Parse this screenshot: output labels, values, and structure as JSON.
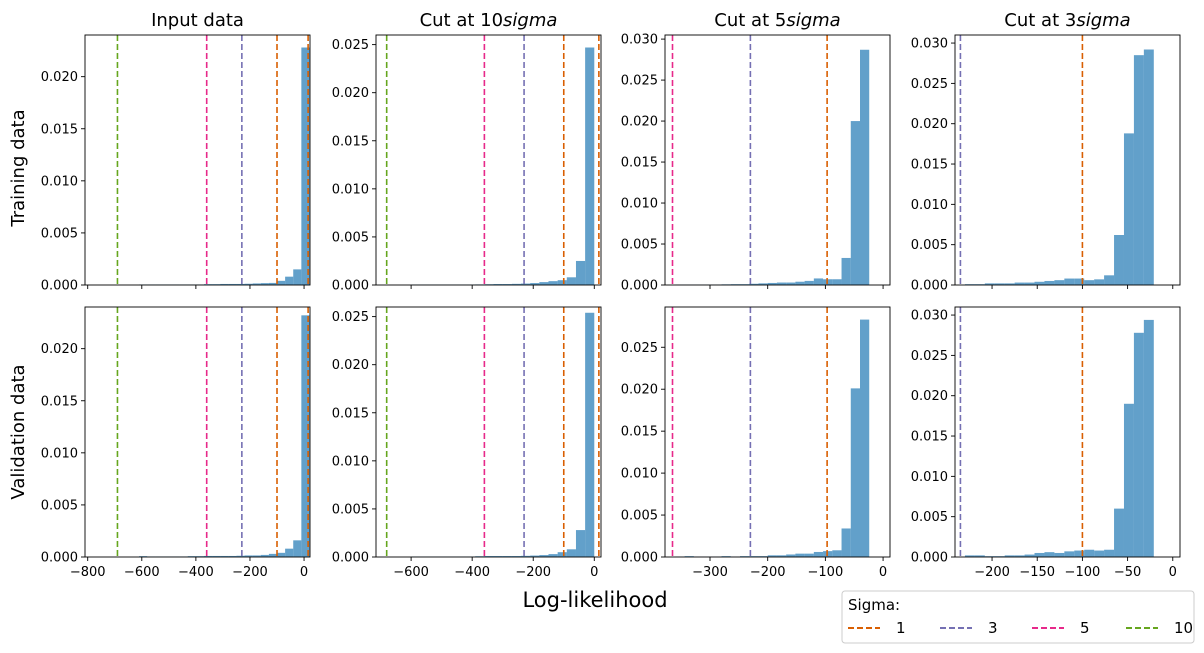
{
  "figure": {
    "xlabel": "Log-likelihood",
    "row_labels": [
      "Training data",
      "Validation data"
    ]
  },
  "legend": {
    "title": "Sigma:",
    "placement": "bottom-right",
    "entries": [
      {
        "label": "1",
        "color": "#d95f02"
      },
      {
        "label": "3",
        "color": "#7570b3"
      },
      {
        "label": "5",
        "color": "#e7298a"
      },
      {
        "label": "10",
        "color": "#66a61e"
      }
    ]
  },
  "chart_data": [
    {
      "type": "bar",
      "row": 0,
      "col": 0,
      "title": "Input data",
      "xlim": [
        -810,
        22
      ],
      "ylim": [
        0,
        0.024
      ],
      "xticks": [
        -800,
        -600,
        -400,
        -200,
        0
      ],
      "yticks": [
        0,
        0.005,
        0.01,
        0.015,
        0.02
      ],
      "ytick_labels": [
        "0.000",
        "0.005",
        "0.010",
        "0.015",
        "0.020"
      ],
      "show_xtick_labels": false,
      "vlines": [
        {
          "sigma": "1",
          "x": -100
        },
        {
          "sigma": "1",
          "x": 15
        },
        {
          "sigma": "3",
          "x": -230
        },
        {
          "sigma": "5",
          "x": -360
        },
        {
          "sigma": "10",
          "x": -690
        }
      ],
      "bins": {
        "start": -610,
        "width": 30,
        "values": [
          5e-05,
          5e-05,
          5e-05,
          5e-05,
          5e-05,
          5e-05,
          5e-05,
          5e-05,
          8e-05,
          8e-05,
          0.0001,
          0.0001,
          0.0001,
          0.00012,
          0.00015,
          0.00018,
          0.0002,
          0.0004,
          0.0008,
          0.0015,
          0.0228
        ]
      }
    },
    {
      "type": "bar",
      "row": 0,
      "col": 1,
      "title": "Cut at 10",
      "title_italic": "sigma",
      "xlim": [
        -715,
        22
      ],
      "ylim": [
        0,
        0.026
      ],
      "xticks": [
        -600,
        -400,
        -200,
        0
      ],
      "yticks": [
        0,
        0.005,
        0.01,
        0.015,
        0.02,
        0.025
      ],
      "ytick_labels": [
        "0.000",
        "0.005",
        "0.010",
        "0.015",
        "0.020",
        "0.025"
      ],
      "show_xtick_labels": false,
      "vlines": [
        {
          "sigma": "1",
          "x": -100
        },
        {
          "sigma": "1",
          "x": 15
        },
        {
          "sigma": "3",
          "x": -230
        },
        {
          "sigma": "5",
          "x": -360
        },
        {
          "sigma": "10",
          "x": -680
        }
      ],
      "bins": {
        "start": -600,
        "width": 30,
        "values": [
          5e-05,
          5e-05,
          5e-05,
          5e-05,
          5e-05,
          5e-05,
          5e-05,
          6e-05,
          8e-05,
          0.0001,
          0.0001,
          0.00012,
          0.00015,
          0.0002,
          0.0003,
          0.0004,
          0.0005,
          0.0008,
          0.0025,
          0.0247
        ]
      }
    },
    {
      "type": "bar",
      "row": 0,
      "col": 2,
      "title": "Cut at 5",
      "title_italic": "sigma",
      "xlim": [
        -378,
        12
      ],
      "ylim": [
        0,
        0.0305
      ],
      "xticks": [
        -300,
        -200,
        -100,
        0
      ],
      "yticks": [
        0,
        0.005,
        0.01,
        0.015,
        0.02,
        0.025,
        0.03
      ],
      "ytick_labels": [
        "0.000",
        "0.005",
        "0.010",
        "0.015",
        "0.020",
        "0.025",
        "0.030"
      ],
      "show_xtick_labels": false,
      "vlines": [
        {
          "sigma": "1",
          "x": -97
        },
        {
          "sigma": "3",
          "x": -230
        },
        {
          "sigma": "5",
          "x": -365
        }
      ],
      "bins": {
        "start": -360,
        "width": 16,
        "values": [
          5e-05,
          5e-05,
          5e-05,
          5e-05,
          5e-05,
          8e-05,
          0.0001,
          0.0001,
          0.00015,
          0.0002,
          0.00025,
          0.0003,
          0.0003,
          0.0004,
          0.0005,
          0.0008,
          0.0007,
          0.0007,
          0.0033,
          0.02,
          0.0287
        ]
      }
    },
    {
      "type": "bar",
      "row": 0,
      "col": 3,
      "title": "Cut at 3",
      "title_italic": "sigma",
      "xlim": [
        -241,
        8
      ],
      "ylim": [
        0,
        0.031
      ],
      "xticks": [
        -200,
        -150,
        -100,
        -50,
        0
      ],
      "yticks": [
        0,
        0.005,
        0.01,
        0.015,
        0.02,
        0.025,
        0.03
      ],
      "ytick_labels": [
        "0.000",
        "0.005",
        "0.010",
        "0.015",
        "0.020",
        "0.025",
        "0.030"
      ],
      "show_xtick_labels": false,
      "vlines": [
        {
          "sigma": "1",
          "x": -100
        },
        {
          "sigma": "3",
          "x": -235
        }
      ],
      "bins": {
        "start": -230,
        "width": 11,
        "values": [
          0.0001,
          0.0001,
          0.0002,
          0.0002,
          0.0002,
          0.0003,
          0.0003,
          0.0004,
          0.0005,
          0.0006,
          0.0008,
          0.0008,
          0.0006,
          0.0007,
          0.0012,
          0.0062,
          0.0188,
          0.0285,
          0.0292
        ]
      }
    },
    {
      "type": "bar",
      "row": 1,
      "col": 0,
      "title": "",
      "xlim": [
        -810,
        22
      ],
      "ylim": [
        0,
        0.024
      ],
      "xticks": [
        -800,
        -600,
        -400,
        -200,
        0
      ],
      "yticks": [
        0,
        0.005,
        0.01,
        0.015,
        0.02
      ],
      "ytick_labels": [
        "0.000",
        "0.005",
        "0.010",
        "0.015",
        "0.020"
      ],
      "xtick_labels": [
        "−800",
        "−600",
        "−400",
        "−200",
        "0"
      ],
      "show_xtick_labels": true,
      "vlines": [
        {
          "sigma": "1",
          "x": -100
        },
        {
          "sigma": "1",
          "x": 15
        },
        {
          "sigma": "3",
          "x": -230
        },
        {
          "sigma": "5",
          "x": -360
        },
        {
          "sigma": "10",
          "x": -690
        }
      ],
      "bins": {
        "start": -610,
        "width": 30,
        "values": [
          8e-05,
          5e-05,
          5e-05,
          5e-05,
          5e-05,
          5e-05,
          8e-05,
          8e-05,
          0.0001,
          0.0001,
          0.0001,
          0.0001,
          0.00012,
          0.00015,
          0.00015,
          0.0002,
          0.0003,
          0.0004,
          0.0008,
          0.0016,
          0.0232
        ]
      }
    },
    {
      "type": "bar",
      "row": 1,
      "col": 1,
      "title": "",
      "xlim": [
        -715,
        22
      ],
      "ylim": [
        0,
        0.026
      ],
      "xticks": [
        -600,
        -400,
        -200,
        0
      ],
      "yticks": [
        0,
        0.005,
        0.01,
        0.015,
        0.02,
        0.025
      ],
      "ytick_labels": [
        "0.000",
        "0.005",
        "0.010",
        "0.015",
        "0.020",
        "0.025"
      ],
      "xtick_labels": [
        "−600",
        "−400",
        "−200",
        "0"
      ],
      "show_xtick_labels": true,
      "vlines": [
        {
          "sigma": "1",
          "x": -100
        },
        {
          "sigma": "1",
          "x": 15
        },
        {
          "sigma": "3",
          "x": -230
        },
        {
          "sigma": "5",
          "x": -360
        },
        {
          "sigma": "10",
          "x": -680
        }
      ],
      "bins": {
        "start": -600,
        "width": 30,
        "values": [
          5e-05,
          5e-05,
          5e-05,
          5e-05,
          5e-05,
          5e-05,
          5e-05,
          8e-05,
          0.0001,
          0.0001,
          0.0001,
          0.0001,
          0.00012,
          0.00015,
          0.0002,
          0.0003,
          0.0005,
          0.0008,
          0.0028,
          0.0254
        ]
      }
    },
    {
      "type": "bar",
      "row": 1,
      "col": 2,
      "title": "",
      "xlim": [
        -378,
        12
      ],
      "ylim": [
        0,
        0.0298
      ],
      "xticks": [
        -300,
        -200,
        -100,
        0
      ],
      "yticks": [
        0,
        0.005,
        0.01,
        0.015,
        0.02,
        0.025
      ],
      "ytick_labels": [
        "0.000",
        "0.005",
        "0.010",
        "0.015",
        "0.020",
        "0.025"
      ],
      "xtick_labels": [
        "−300",
        "−200",
        "−100",
        "0"
      ],
      "show_xtick_labels": true,
      "vlines": [
        {
          "sigma": "1",
          "x": -97
        },
        {
          "sigma": "3",
          "x": -230
        },
        {
          "sigma": "5",
          "x": -365
        }
      ],
      "bins": {
        "start": -360,
        "width": 16,
        "values": [
          5e-05,
          0.0001,
          5e-05,
          5e-05,
          5e-05,
          0.0001,
          5e-05,
          0.0001,
          0.0001,
          0.0001,
          0.0002,
          0.0002,
          0.0003,
          0.0004,
          0.0004,
          0.0006,
          0.0007,
          0.0008,
          0.0034,
          0.0201,
          0.0283
        ]
      }
    },
    {
      "type": "bar",
      "row": 1,
      "col": 3,
      "title": "",
      "xlim": [
        -241,
        8
      ],
      "ylim": [
        0,
        0.031
      ],
      "xticks": [
        -200,
        -150,
        -100,
        -50,
        0
      ],
      "yticks": [
        0,
        0.005,
        0.01,
        0.015,
        0.02,
        0.025,
        0.03
      ],
      "ytick_labels": [
        "0.000",
        "0.005",
        "0.010",
        "0.015",
        "0.020",
        "0.025",
        "0.030"
      ],
      "xtick_labels": [
        "−200",
        "−150",
        "−100",
        "−50",
        "0"
      ],
      "show_xtick_labels": true,
      "vlines": [
        {
          "sigma": "1",
          "x": -100
        },
        {
          "sigma": "3",
          "x": -235
        }
      ],
      "bins": {
        "start": -230,
        "width": 11,
        "values": [
          0.0002,
          0.0002,
          0.0001,
          0.0001,
          0.0002,
          0.0002,
          0.0003,
          0.0005,
          0.0006,
          0.0005,
          0.0007,
          0.0008,
          0.0009,
          0.0008,
          0.0009,
          0.006,
          0.019,
          0.0278,
          0.0294
        ]
      }
    }
  ]
}
